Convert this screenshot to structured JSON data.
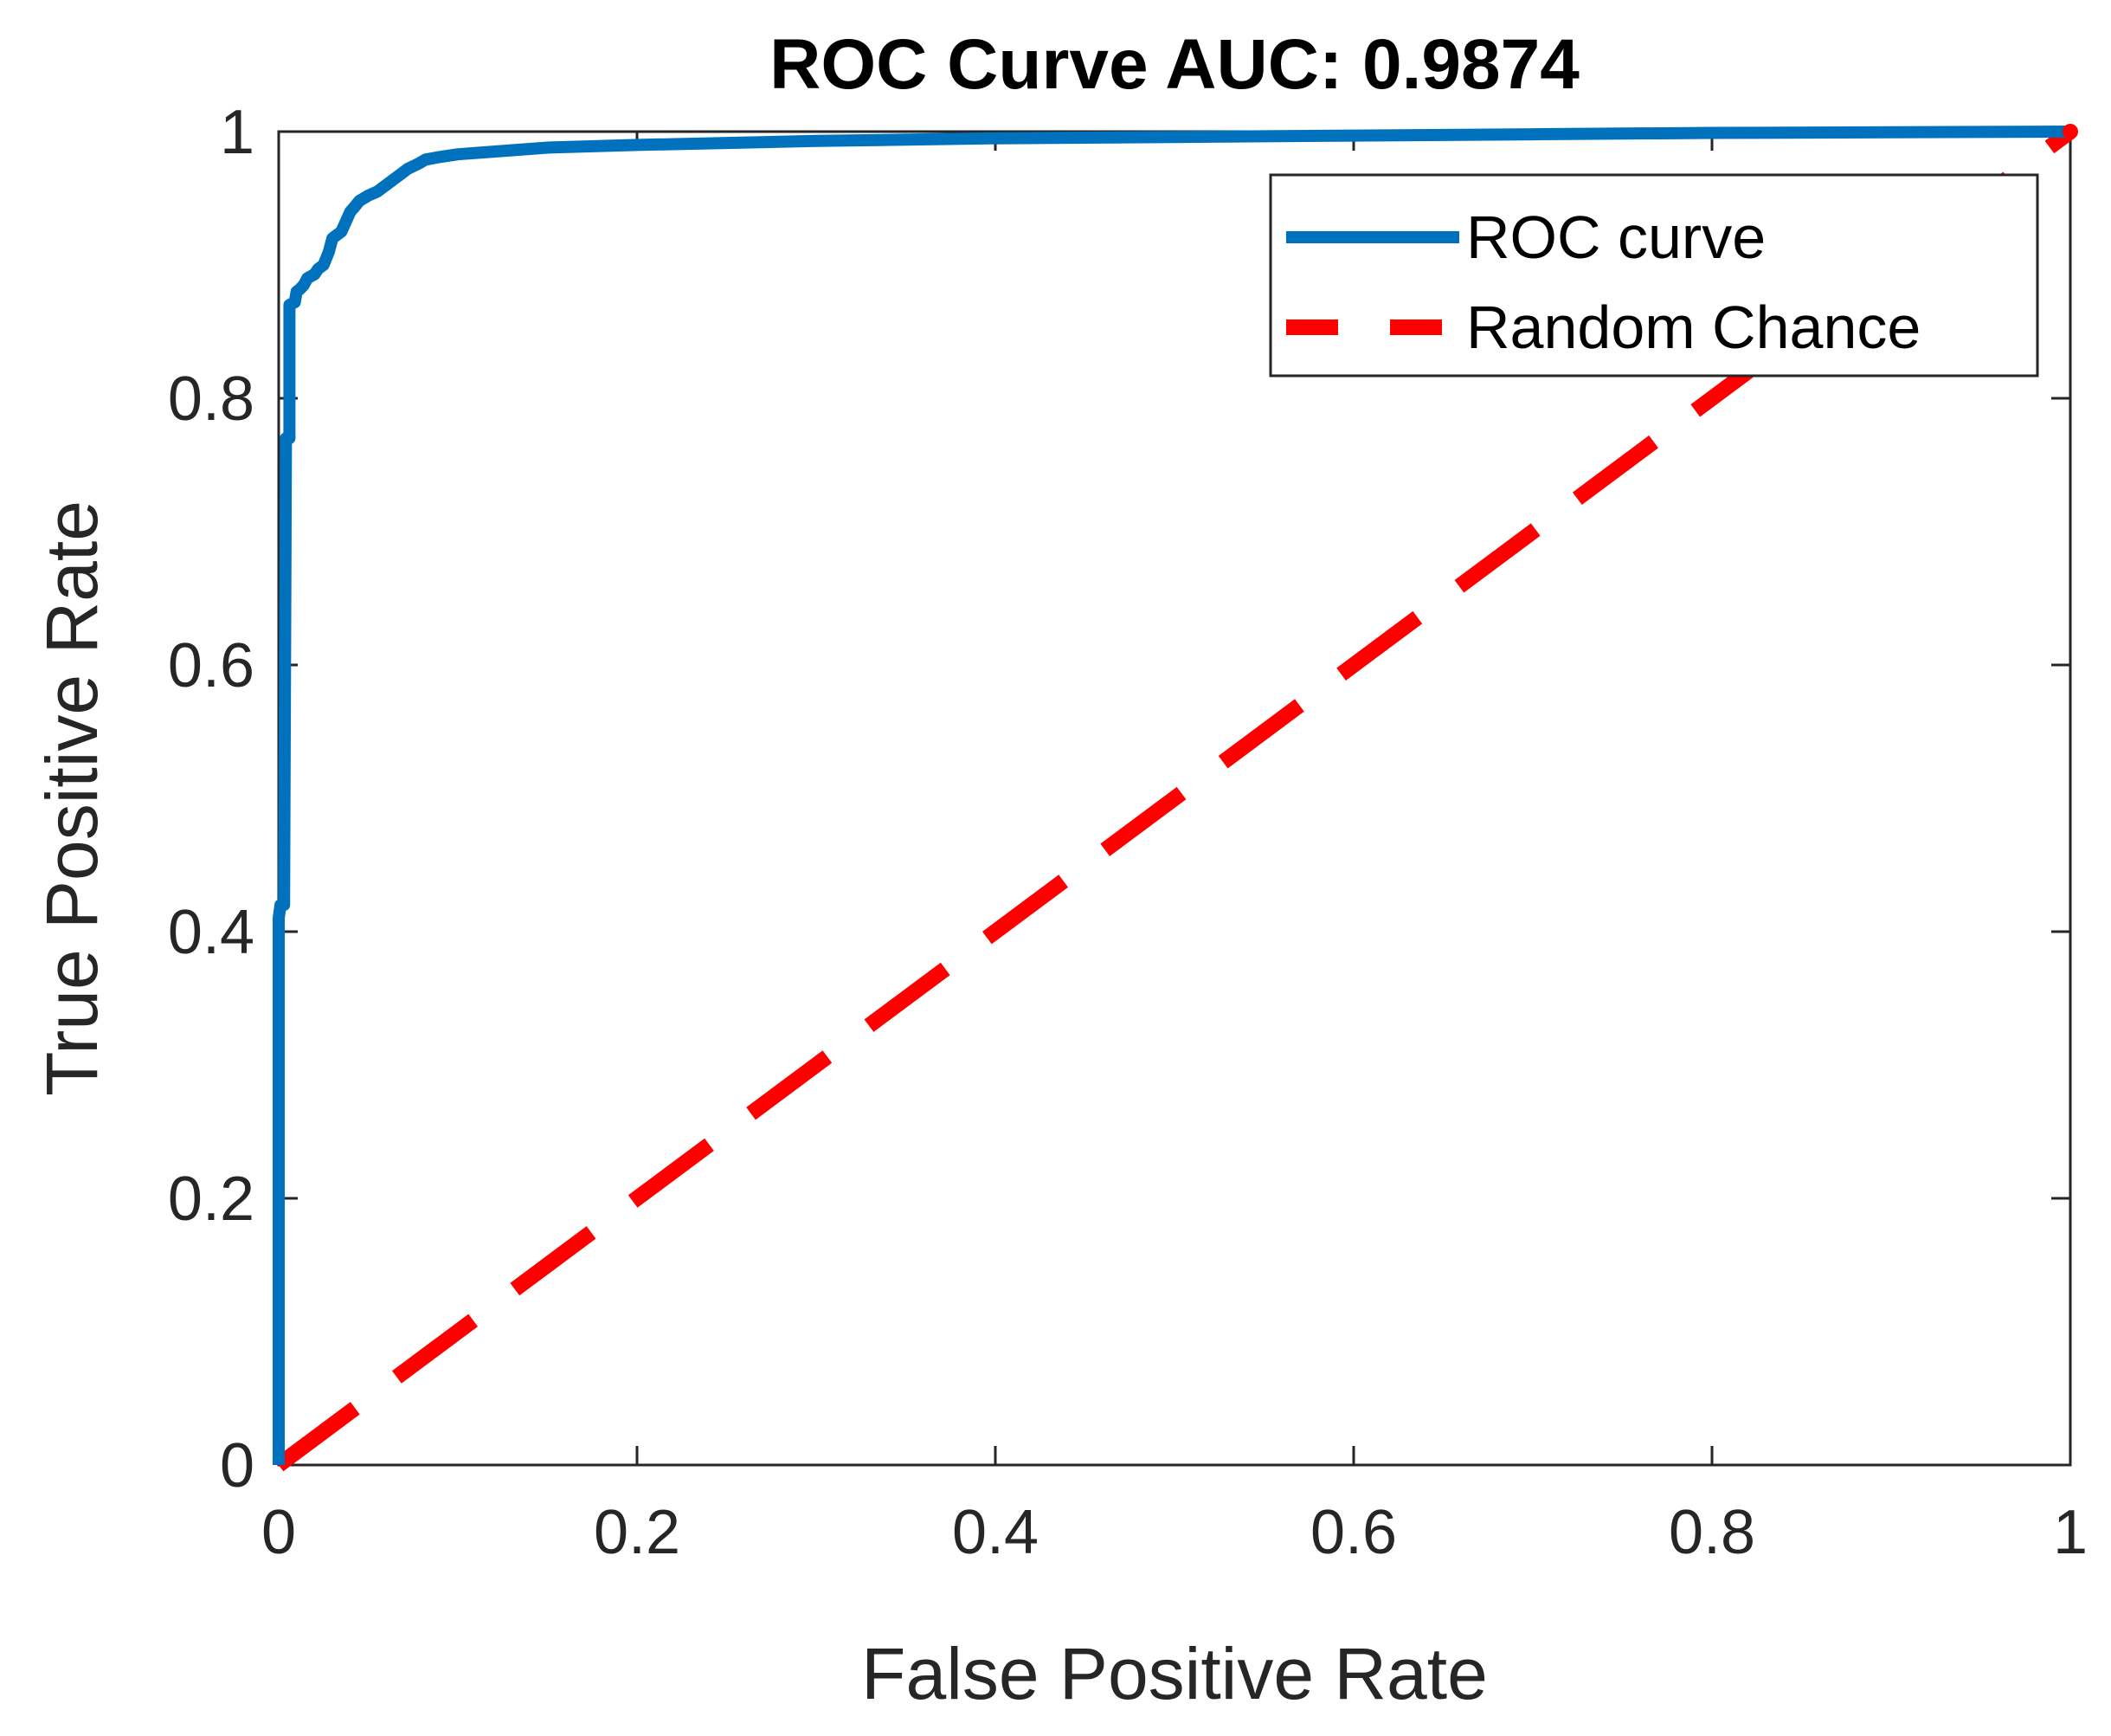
{
  "chart_data": {
    "type": "line",
    "title": "ROC Curve AUC: 0.9874",
    "xlabel": "False Positive Rate",
    "ylabel": "True Positive Rate",
    "xlim": [
      0,
      1
    ],
    "ylim": [
      0,
      1
    ],
    "xticks": [
      0,
      0.2,
      0.4,
      0.6,
      0.8,
      1
    ],
    "yticks": [
      0,
      0.2,
      0.4,
      0.6,
      0.8,
      1
    ],
    "xtick_labels": [
      "0",
      "0.2",
      "0.4",
      "0.6",
      "0.8",
      "1"
    ],
    "ytick_labels": [
      "0",
      "0.2",
      "0.4",
      "0.6",
      "0.8",
      "1"
    ],
    "grid": false,
    "legend_position": "top-right",
    "series": [
      {
        "name": "ROC curve",
        "color": "#0072BD",
        "style": "solid",
        "x": [
          0,
          0,
          0.001,
          0.003,
          0.004,
          0.004,
          0.006,
          0.006,
          0.009,
          0.01,
          0.012,
          0.014,
          0.016,
          0.02,
          0.022,
          0.025,
          0.028,
          0.03,
          0.035,
          0.04,
          0.042,
          0.045,
          0.05,
          0.055,
          0.06,
          0.063,
          0.068,
          0.072,
          0.078,
          0.082,
          0.09,
          0.1,
          0.12,
          0.15,
          0.2,
          0.3,
          0.4,
          0.5,
          0.6,
          0.7,
          0.8,
          0.9,
          1.0
        ],
        "y": [
          0,
          0.41,
          0.42,
          0.42,
          0.76,
          0.77,
          0.77,
          0.87,
          0.872,
          0.88,
          0.882,
          0.885,
          0.89,
          0.893,
          0.897,
          0.9,
          0.91,
          0.92,
          0.925,
          0.94,
          0.943,
          0.948,
          0.952,
          0.955,
          0.96,
          0.963,
          0.968,
          0.972,
          0.976,
          0.979,
          0.981,
          0.983,
          0.985,
          0.988,
          0.99,
          0.993,
          0.995,
          0.996,
          0.997,
          0.998,
          0.999,
          0.9995,
          1.0
        ]
      },
      {
        "name": "Random Chance",
        "color": "#FF0000",
        "style": "dashed",
        "x": [
          0,
          1
        ],
        "y": [
          0,
          1
        ]
      }
    ]
  }
}
